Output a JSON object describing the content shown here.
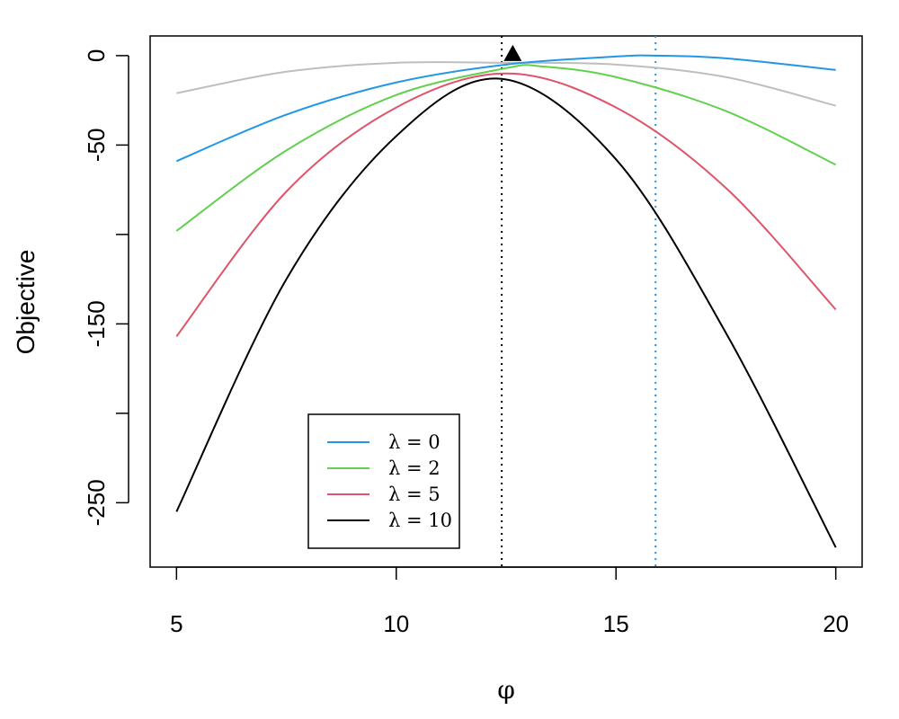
{
  "chart_data": {
    "type": "line",
    "title": "",
    "xlabel": "φ",
    "ylabel": "Objective",
    "xlim": [
      4.4,
      20.6
    ],
    "ylim": [
      -286,
      11
    ],
    "x_ticks": [
      5,
      10,
      15,
      20
    ],
    "x_tick_labels": [
      "5",
      "10",
      "15",
      "20"
    ],
    "y_ticks": [
      0,
      -50,
      -100,
      -150,
      -200,
      -250
    ],
    "y_tick_labels": [
      "0",
      "-50",
      "",
      "-150",
      "",
      "-250"
    ],
    "grid": false,
    "legend_position": "bottom-center",
    "series": [
      {
        "name": "λ = 0",
        "color": "#2297e6",
        "x": [
          5,
          7.5,
          10,
          12.5,
          15,
          15.9,
          17.5,
          20
        ],
        "y": [
          -59,
          -33,
          -15,
          -5,
          -0.5,
          0,
          -1.5,
          -8
        ]
      },
      {
        "name": "λ = 2",
        "color": "#61d04f",
        "x": [
          5,
          7.5,
          10,
          12.5,
          13.3,
          15,
          17.5,
          20
        ],
        "y": [
          -98,
          -53,
          -22,
          -7,
          -6,
          -12,
          -31,
          -61
        ]
      },
      {
        "name": "λ = 5",
        "color": "#df536b",
        "x": [
          5,
          7.5,
          10,
          12.5,
          15,
          17.5,
          20
        ],
        "y": [
          -157,
          -76,
          -29,
          -10,
          -29,
          -74,
          -142
        ]
      },
      {
        "name": "λ = 10",
        "color": "#000000",
        "x": [
          5,
          7.5,
          10,
          12.4,
          15,
          17.5,
          20
        ],
        "y": [
          -255,
          -125,
          -45,
          -13,
          -58,
          -155,
          -275
        ]
      },
      {
        "name": "",
        "color": "#bebebe",
        "x": [
          5,
          7.5,
          10,
          12.5,
          15,
          17.5,
          20
        ],
        "y": [
          -21,
          -9,
          -4,
          -4,
          -5,
          -12,
          -28
        ]
      }
    ],
    "reference_lines": [
      {
        "x": 12.4,
        "color": "#000000",
        "style": "dotted"
      },
      {
        "x": 15.9,
        "color": "#2297e6",
        "style": "dotted"
      }
    ],
    "markers": [
      {
        "x": 12.65,
        "y": 1,
        "shape": "triangle",
        "color": "#000000"
      }
    ]
  }
}
